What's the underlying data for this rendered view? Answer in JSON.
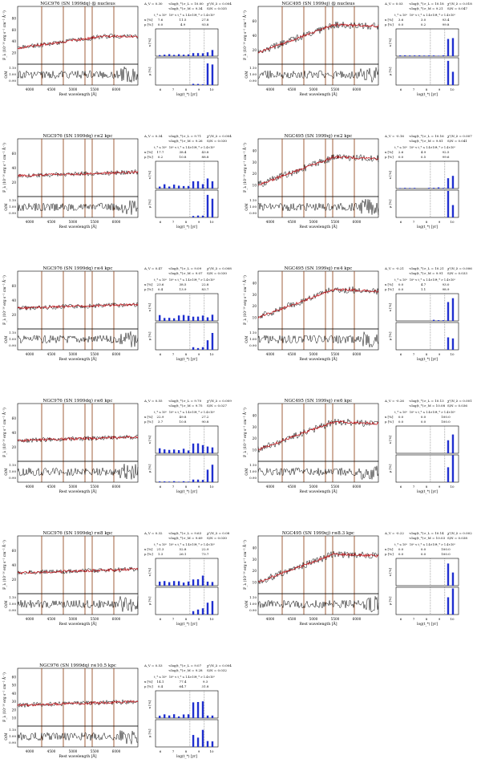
{
  "page": {
    "description_panels": "Grid of spectral-fit panels for NGC976 and NGC495",
    "axis_labels": {
      "flux": "F_λ (10⁻¹⁶ erg s⁻¹ cm⁻² Å⁻¹)",
      "ratio": "O/M",
      "wavelength": "Rest wavelength [Å]",
      "age": "log(t_*) [yr]",
      "x_frac": "x [%]",
      "mu_frac": "μ [%]"
    },
    "age_ticks": [
      "6",
      "7",
      "8",
      "9",
      "10"
    ],
    "wave_ticks": [
      "4000",
      "4500",
      "5000",
      "5500",
      "6000"
    ],
    "hdr_bins": [
      "t_* ≤ 10⁸",
      "10⁸ < t_* ≤ 1.4×10⁹",
      "t_* > 1.4×10⁹"
    ],
    "row_x": "x [%]",
    "row_mu": "μ [%]"
  },
  "colors": {
    "model_red": "#c0141a",
    "obs_black": "#000000",
    "line_brown": "#8b3a0e",
    "bar_blue": "#1f2fd0",
    "dotted": "#555555"
  },
  "chart_data": [
    {
      "type": "line",
      "title": "NGC976 (SN 1999dq) @ nucleus",
      "params": [
        "A_V = 0.30",
        "<log(t_*)>_L = 10.00",
        "χ²/N_λ = 0.004",
        "<log(t_*)>_M = 9.34",
        "S/N = 0.035"
      ],
      "x_pct": [
        "7.6",
        "11.5",
        "27.8"
      ],
      "mu_pct": [
        "0.0",
        "4.9",
        "93.8"
      ],
      "xlim": [
        3700,
        6800
      ],
      "flux_ticks": [
        "20",
        "40",
        "60",
        "80"
      ],
      "ratio_ticks": [
        "0.90",
        "1.00",
        "1.10"
      ]
    },
    {
      "type": "line",
      "title": "NGC495 (SN 1999ej) @ nucleus",
      "params": [
        "A_V = 0.03",
        "<log(t_*)>_L = 10.18",
        "χ²/N_λ = 0.018",
        "<log(t_*)>_M = 9.21",
        "S/N = 0.047"
      ],
      "x_pct": [
        "3.6",
        "3.0",
        "93.4"
      ],
      "mu_pct": [
        "0.0",
        "0.2",
        "99.8"
      ],
      "xlim": [
        3700,
        6800
      ],
      "flux_ticks": [
        "20",
        "40",
        "60"
      ],
      "ratio_ticks": [
        "0.90",
        "1.00",
        "1.10"
      ]
    },
    {
      "type": "line",
      "title": "NGC976 (SN 1999dq) r≤2 kpc",
      "params": [
        "A_V = 0.34",
        "<log(t_*)>_L = 9.71",
        "χ²/N_λ = 0.004",
        "<log(t_*)>_M = 9.26",
        "S/N = 0.030"
      ],
      "x_pct": [
        "17.7",
        "38.4",
        "43.8"
      ],
      "mu_pct": [
        "0.2",
        "10.8",
        "88.8"
      ],
      "xlim": [
        3700,
        6800
      ],
      "flux_ticks": [
        "20",
        "40",
        "60"
      ],
      "ratio_ticks": [
        "0.90",
        "1.00",
        "1.10"
      ]
    },
    {
      "type": "line",
      "title": "NGC495 (SN 1999ej) r≤2 kpc",
      "params": [
        "A_V = -0.16",
        "<log(t_*)>_L = 10.16",
        "χ²/N_λ = 0.007",
        "<log(t_*)>_M = 9.81",
        "S/N = 0.041"
      ],
      "x_pct": [
        "2.6",
        "4.9",
        "92.5"
      ],
      "mu_pct": [
        "0.0",
        "0.5",
        "99.6"
      ],
      "xlim": [
        3700,
        6800
      ],
      "flux_ticks": [
        "10",
        "20",
        "30",
        "40"
      ],
      "ratio_ticks": [
        "0.90",
        "1.00",
        "1.10"
      ]
    },
    {
      "type": "line",
      "title": "NGC976 (SN 1999dq) r≤4 kpc",
      "params": [
        "A_V = 0.47",
        "<log(t_*)>_L = 9.09",
        "χ²/N_λ = 0.008",
        "<log(t_*)>_M = 9.07",
        "S/N = 0.030"
      ],
      "x_pct": [
        "23.6",
        "38.5",
        "22.8"
      ],
      "mu_pct": [
        "0.4",
        "13.9",
        "83.7"
      ],
      "xlim": [
        3700,
        6800
      ],
      "flux_ticks": [
        "20",
        "40",
        "60"
      ],
      "ratio_ticks": [
        "0.90",
        "1.00",
        "1.10"
      ]
    },
    {
      "type": "line",
      "title": "NGC495 (SN 1999ej) r≤4 kpc",
      "params": [
        "A_V = -0.21",
        "<log(t_*)>_L = 10.21",
        "χ²/N_λ = 0.006",
        "<log(t_*)>_M = 9.91",
        "S/N = 0.033"
      ],
      "x_pct": [
        "0.0",
        "4.7",
        "93.0"
      ],
      "mu_pct": [
        "0.0",
        "1.1",
        "98.9"
      ],
      "xlim": [
        3700,
        6800
      ],
      "flux_ticks": [
        "10",
        "20",
        "30",
        "40"
      ],
      "ratio_ticks": [
        "0.90",
        "1.00",
        "1.10"
      ]
    },
    {
      "type": "line",
      "title": "NGC976 (SN 1999dq) r≤6 kpc",
      "params": [
        "A_V = 0.55",
        "<log(t_*)>_L = 9.70",
        "χ²/N_λ = 0.009",
        "<log(t_*)>_M = 9.75",
        "S/N = 0.027"
      ],
      "x_pct": [
        "22.9",
        "49.8",
        "27.2"
      ],
      "mu_pct": [
        "3.7",
        "10.8",
        "90.8"
      ],
      "xlim": [
        3700,
        6800
      ],
      "flux_ticks": [
        "20",
        "40",
        "60"
      ],
      "ratio_ticks": [
        "0.90",
        "1.00",
        "1.10"
      ]
    },
    {
      "type": "line",
      "title": "NGC495 (SN 1999ej) r≤6 kpc",
      "params": [
        "A_V = -0.26",
        "<log(t_*)>_L = 10.13",
        "χ²/N_λ = 0.001",
        "<log(t_*)>_M = 10.08",
        "S/N = 0.036"
      ],
      "x_pct": [
        "0.0",
        "0.0",
        "100.0"
      ],
      "mu_pct": [
        "0.0",
        "0.0",
        "100.0"
      ],
      "xlim": [
        3700,
        6800
      ],
      "flux_ticks": [
        "10",
        "20",
        "30",
        "40"
      ],
      "ratio_ticks": [
        "0.90",
        "1.00",
        "1.10"
      ]
    },
    {
      "type": "line",
      "title": "NGC976 (SN 1999dq) r≤8 kpc",
      "params": [
        "A_V = 0.32",
        "<log(t_*)>_L = 9.63",
        "χ²/N_λ = 0.08",
        "<log(t_*)>_M = 9.69",
        "S/N = 0.030"
      ],
      "x_pct": [
        "21.3",
        "52.8",
        "22.9"
      ],
      "mu_pct": [
        "1.3",
        "26.1",
        "73.7"
      ],
      "xlim": [
        3700,
        6800
      ],
      "flux_ticks": [
        "20",
        "40",
        "60"
      ],
      "ratio_ticks": [
        "0.90",
        "1.00",
        "1.10"
      ]
    },
    {
      "type": "line",
      "title": "NGC495 (SN 1999ej) r≤8.3 kpc",
      "params": [
        "A_V = -0.22",
        "<log(t_*)>_L = 10.14",
        "χ²/N_λ = 0.002",
        "<log(t_*)>_M = 10.03",
        "S/N = 0.038"
      ],
      "x_pct": [
        "0.0",
        "0.0",
        "100.0"
      ],
      "mu_pct": [
        "0.0",
        "0.0",
        "100.0"
      ],
      "xlim": [
        3700,
        6800
      ],
      "flux_ticks": [
        "10",
        "20",
        "30",
        "40"
      ],
      "ratio_ticks": [
        "0.90",
        "1.00",
        "1.10"
      ]
    },
    {
      "type": "line",
      "title": "NGC976 (SN 1999dq) r≤10.5 kpc",
      "params": [
        "A_V = 0.53",
        "<log(t_*)>_L = 9.07",
        "χ²/N_λ = 0.004",
        "<log(t_*)>_M = 9.28",
        "S/N = 0.032"
      ],
      "x_pct": [
        "14.1",
        "77.4",
        "9.3"
      ],
      "mu_pct": [
        "0.4",
        "64.7",
        "31.8"
      ],
      "xlim": [
        3700,
        6800
      ],
      "flux_ticks": [
        "10",
        "20",
        "30",
        "40",
        "50",
        "60"
      ],
      "ratio_ticks": [
        "0.90",
        "1.00",
        "1.10"
      ]
    }
  ]
}
